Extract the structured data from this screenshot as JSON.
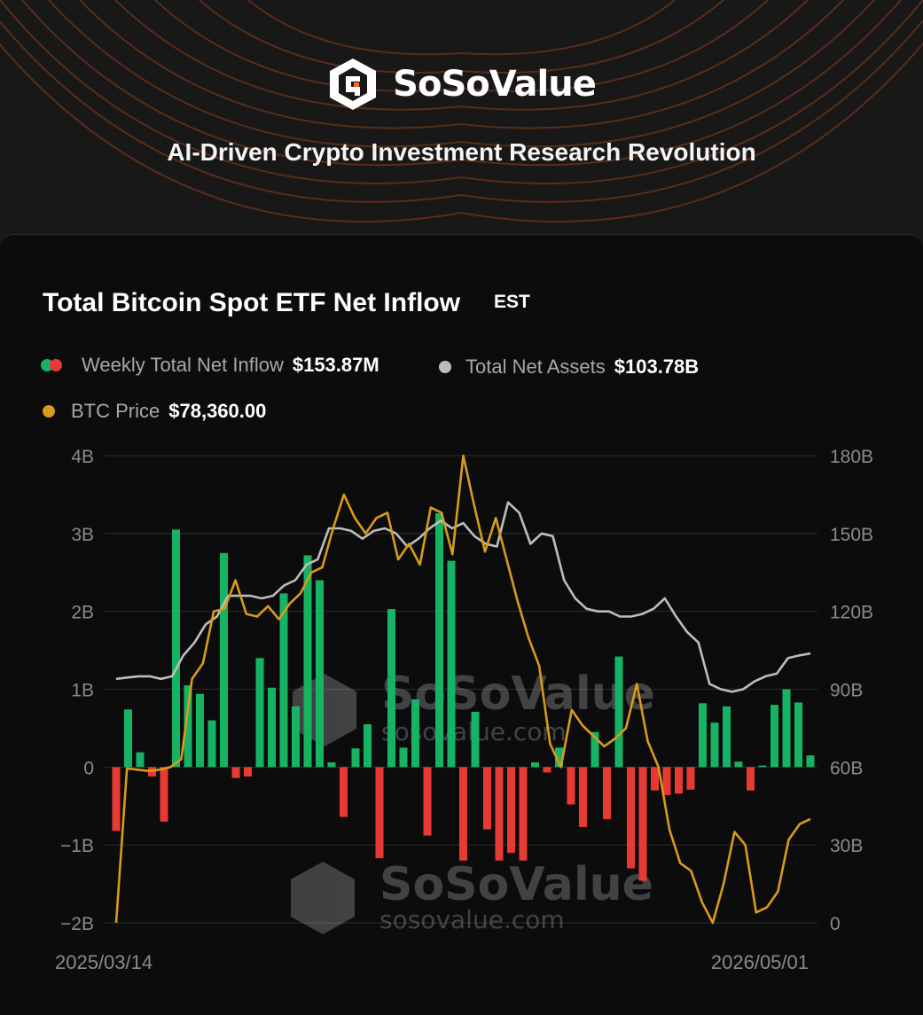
{
  "brand": {
    "name": "SoSoValue",
    "tagline": "AI-Driven Crypto Investment Research Revolution"
  },
  "chart_meta": {
    "tz": "EST"
  },
  "legend": {
    "inflow_label": "Weekly Total Net Inflow",
    "inflow_value": "$153.87M",
    "assets_label": "Total Net Assets",
    "assets_value": "$103.78B",
    "price_label": "BTC Price",
    "price_value": "$78,360.00"
  },
  "colors": {
    "positive": "#16b365",
    "negative": "#e83a35",
    "assets": "#bdbdbd",
    "price": "#d89b1a"
  },
  "watermark": {
    "brand": "SoSoValue",
    "url": "sosovalue.com"
  },
  "chart_data": {
    "type": "bar",
    "title": "Total Bitcoin Spot ETF Net Inflow",
    "x_start": "2025/03/14",
    "x_end": "2026/05/01",
    "left_axis": {
      "ticks": [
        "4B",
        "3B",
        "2B",
        "1B",
        "0",
        "−1B",
        "−2B"
      ],
      "range": [
        -2,
        4
      ],
      "unit": "B"
    },
    "right_axis": {
      "ticks": [
        "180B",
        "150B",
        "120B",
        "90B",
        "60B",
        "30B",
        "0"
      ],
      "range": [
        0,
        180
      ],
      "unit": "B"
    },
    "series": [
      {
        "name": "Weekly Total Net Inflow",
        "type": "bar",
        "values": [
          -0.82,
          0.74,
          0.19,
          -0.12,
          -0.7,
          3.05,
          1.05,
          0.94,
          0.6,
          2.75,
          -0.14,
          -0.12,
          1.4,
          1.02,
          2.23,
          0.78,
          2.72,
          2.4,
          0.06,
          -0.64,
          0.24,
          0.55,
          -1.17,
          2.03,
          0.25,
          0.87,
          -0.88,
          3.26,
          2.65,
          -1.2,
          0.71,
          -0.8,
          -1.2,
          -1.1,
          -1.2,
          0.06,
          -0.07,
          0.25,
          -0.48,
          -0.77,
          0.45,
          -0.67,
          1.42,
          -1.3,
          -1.46,
          -0.3,
          -0.36,
          -0.34,
          -0.29,
          0.82,
          0.57,
          0.78,
          0.07,
          -0.3,
          0.02,
          0.8,
          1.0,
          0.83,
          0.15
        ]
      },
      {
        "name": "Total Net Assets",
        "type": "line",
        "axis": "right",
        "values": [
          94,
          94.5,
          95,
          95,
          94,
          95,
          103,
          108,
          115,
          118,
          126,
          126,
          126,
          125,
          126,
          130,
          132,
          138,
          140,
          152,
          152,
          151,
          148,
          151,
          152,
          150,
          145,
          148,
          152,
          155,
          152,
          154,
          149,
          146,
          145,
          162,
          158,
          146,
          150,
          149,
          132,
          125,
          121,
          120,
          120,
          118,
          118,
          119,
          121,
          125,
          118,
          112,
          108,
          92,
          90,
          89,
          90,
          93,
          95,
          96,
          102,
          103,
          103.78
        ]
      },
      {
        "name": "BTC Price",
        "type": "line",
        "axis": "right",
        "values": [
          0,
          59.5,
          59,
          58.5,
          59,
          60,
          63,
          94,
          100,
          120,
          121,
          132,
          119,
          118,
          122,
          117,
          123,
          127,
          135,
          137,
          152,
          165,
          156,
          150,
          156,
          158,
          140,
          146,
          138,
          160,
          158,
          142,
          180,
          161,
          143,
          156,
          140,
          124,
          110,
          99,
          69,
          60,
          82,
          76,
          72,
          68,
          71,
          75,
          92,
          70,
          60,
          36,
          23,
          20,
          8,
          0,
          15,
          35,
          30,
          4,
          6,
          12,
          32,
          38,
          40
        ]
      }
    ]
  }
}
